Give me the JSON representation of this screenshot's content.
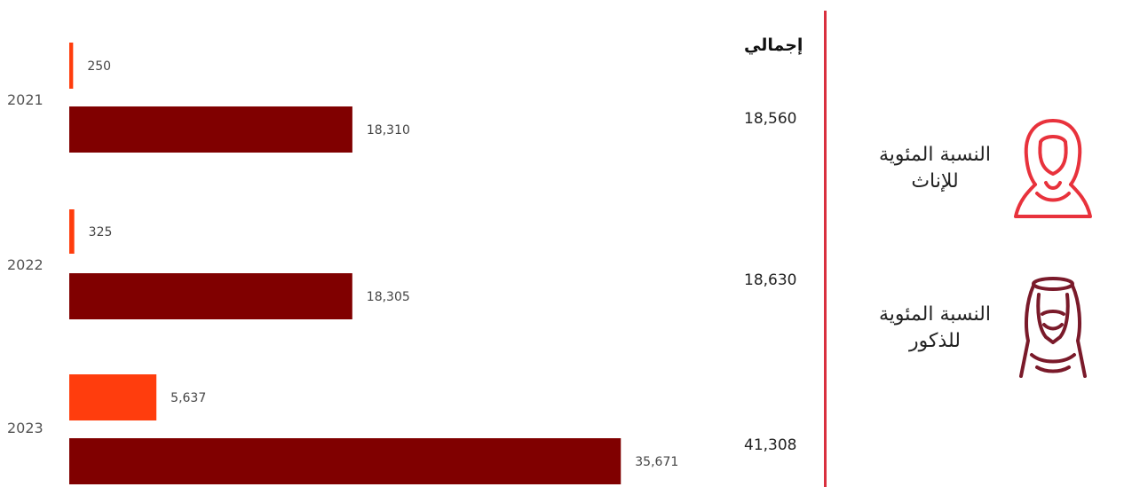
{
  "colors": {
    "male": "#800000",
    "female": "#ff3d0d",
    "divider": "#d9303f",
    "female_icon": "#e8323c",
    "male_icon": "#7a1a2a"
  },
  "total_header": "إجمالي",
  "legend": {
    "female_label": "النسبة المئوية للإناث",
    "female_icon": "woman-hijab-icon",
    "male_label": "النسبة المئوية للذكور",
    "male_icon": "man-ghutra-icon"
  },
  "chart_data": {
    "type": "bar",
    "orientation": "horizontal",
    "categories": [
      "2021",
      "2022",
      "2023"
    ],
    "series": [
      {
        "key": "female",
        "values": [
          250,
          325,
          5637
        ],
        "labels": [
          "250",
          "325",
          "5,637"
        ]
      },
      {
        "key": "male",
        "values": [
          18310,
          18305,
          35671
        ],
        "labels": [
          "18,310",
          "18,305",
          "35,671"
        ]
      }
    ],
    "totals": [
      "18,560",
      "18,630",
      "41,308"
    ],
    "xlim": [
      0,
      36000
    ],
    "grid": false
  }
}
